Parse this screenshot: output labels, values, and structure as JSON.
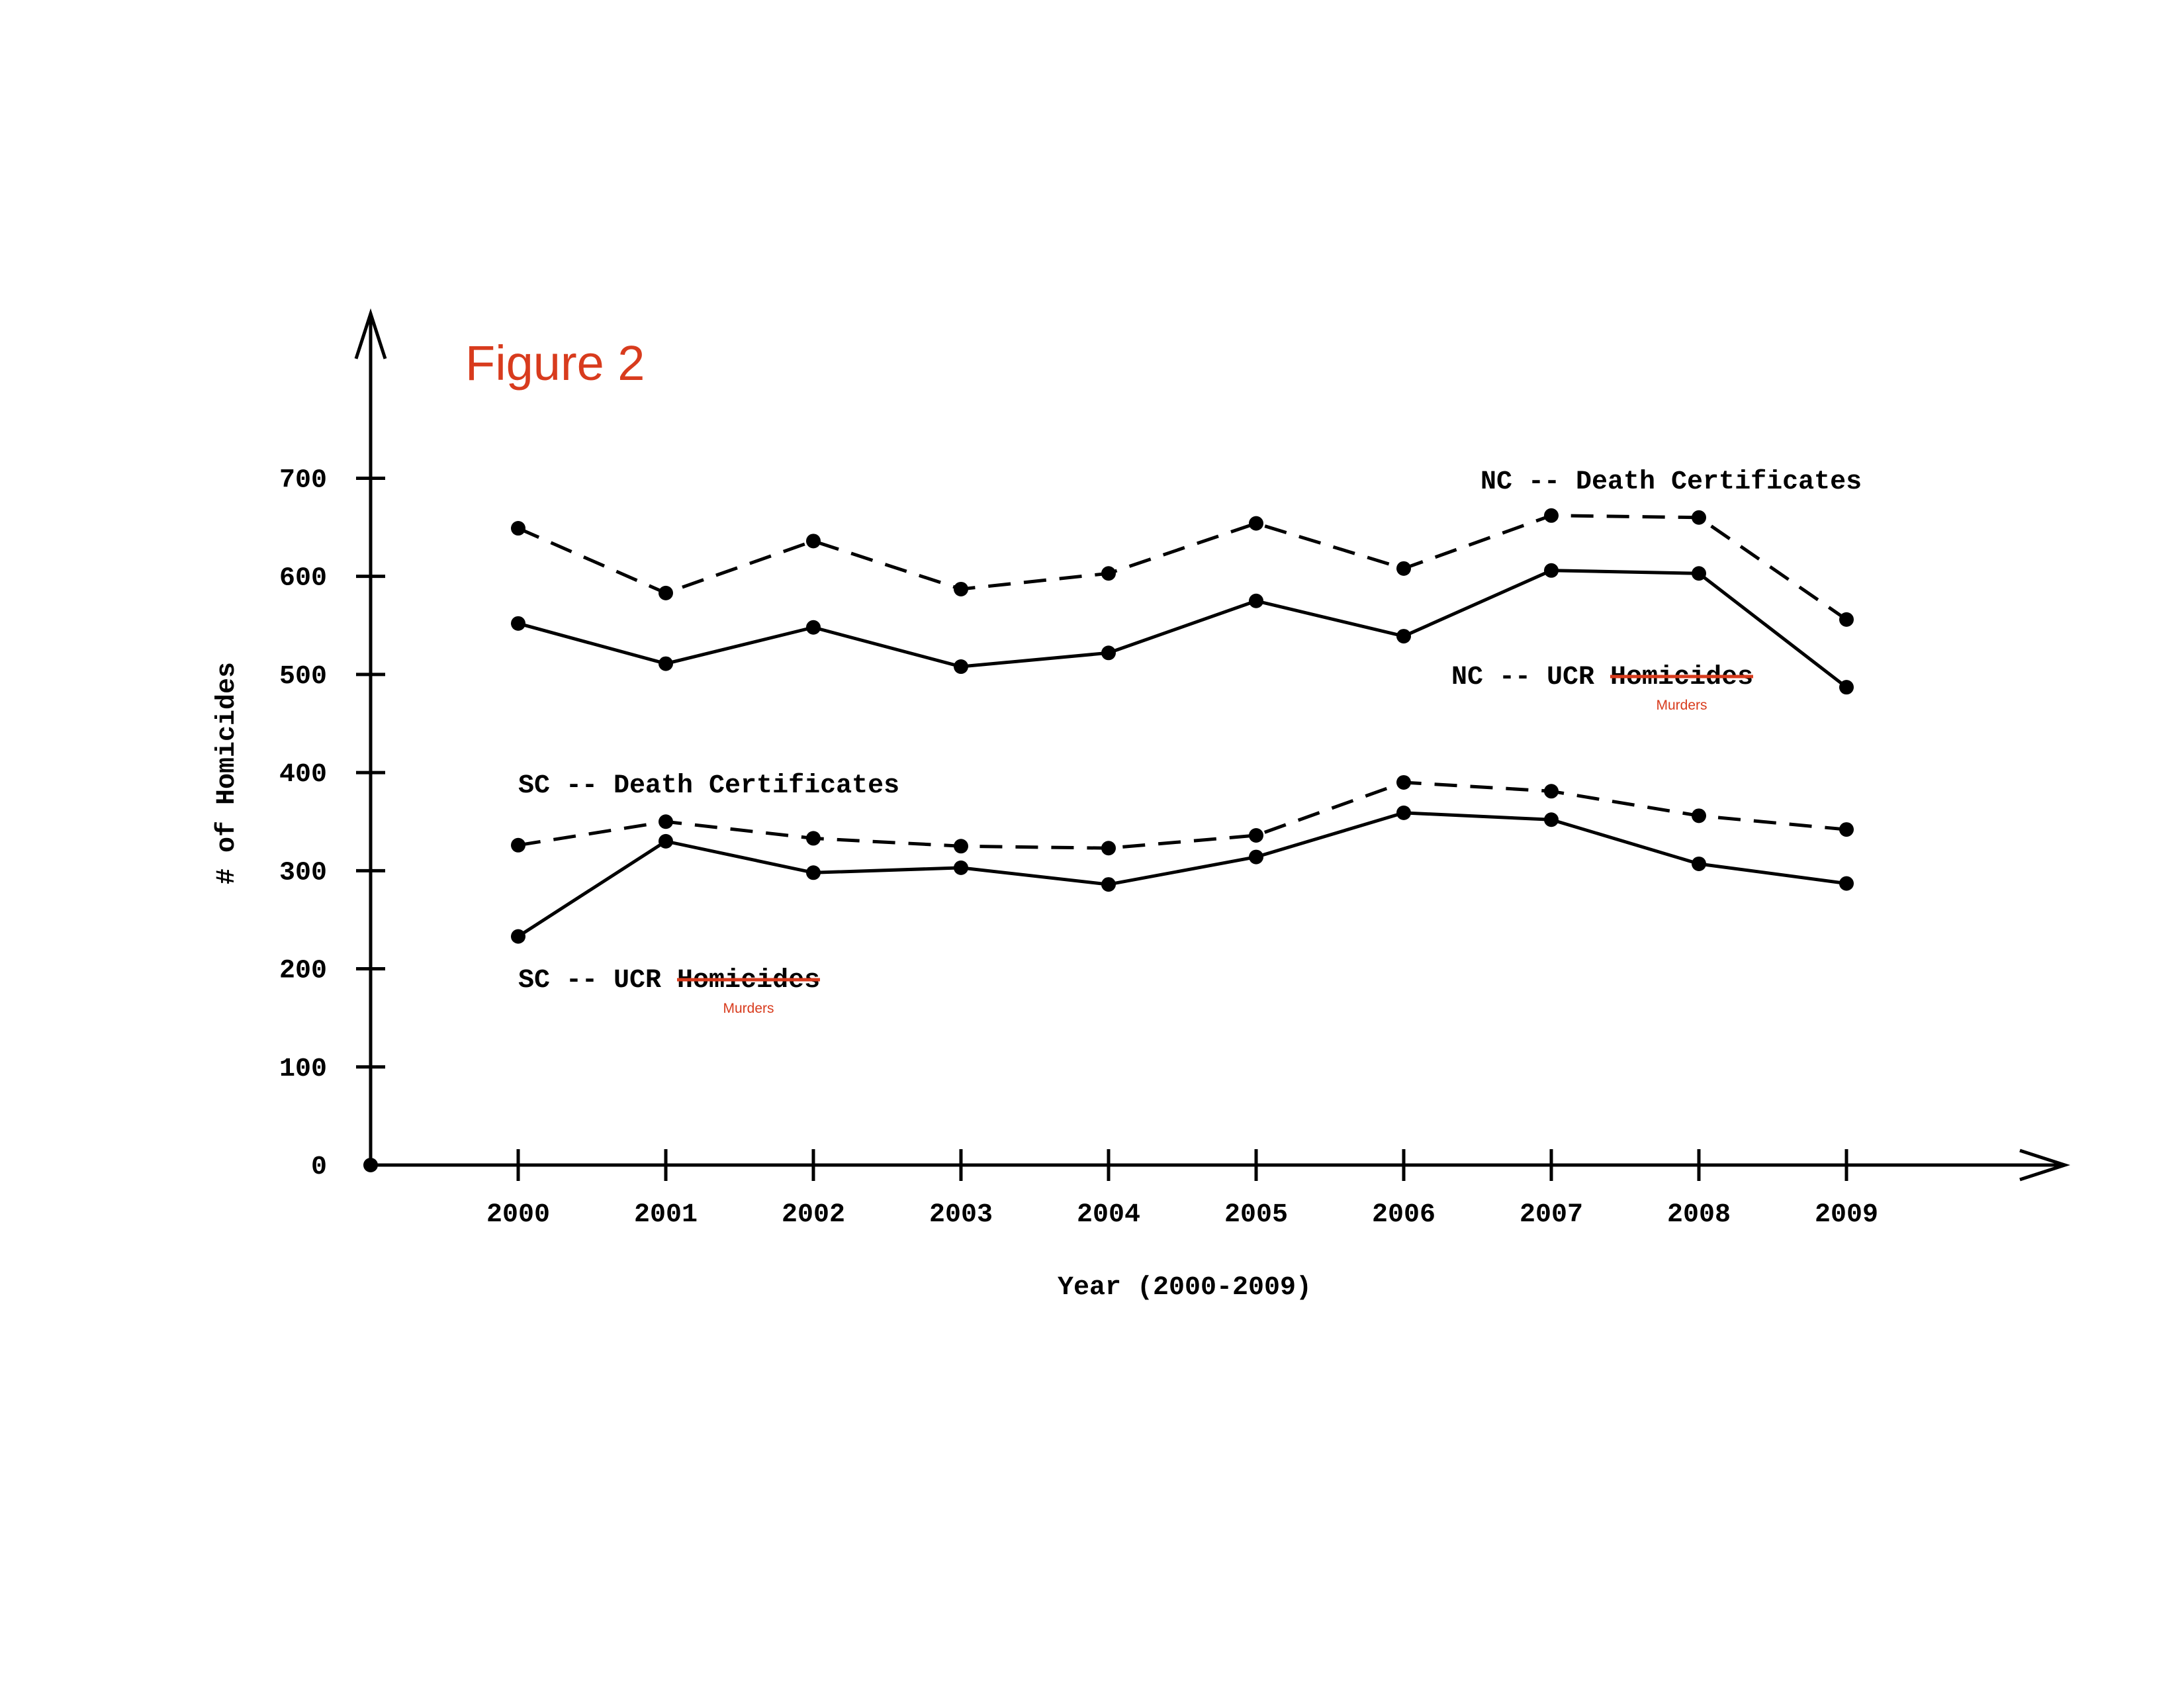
{
  "chart_data": {
    "type": "line",
    "title": "Figure 2",
    "xlabel": "Year (2000-2009)",
    "ylabel": "# of Homicides",
    "x": [
      "2000",
      "2001",
      "2002",
      "2003",
      "2004",
      "2005",
      "2006",
      "2007",
      "2008",
      "2009"
    ],
    "yticks": [
      "0",
      "100",
      "200",
      "300",
      "400",
      "500",
      "600",
      "700"
    ],
    "ylim": [
      0,
      780
    ],
    "grid": false,
    "series": [
      {
        "name": "NC -- Death Certificates",
        "prefix": "NC -- Death Certificates",
        "style": "dashed",
        "values": [
          649,
          583,
          636,
          587,
          603,
          654,
          608,
          662,
          660,
          556
        ]
      },
      {
        "name": "NC -- UCR Homicides",
        "prefix": "NC -- UCR ",
        "struck": "Homicides",
        "correction": "Murders",
        "style": "solid",
        "values": [
          552,
          511,
          548,
          508,
          522,
          575,
          539,
          606,
          603,
          487
        ]
      },
      {
        "name": "SC -- Death Certificates",
        "prefix": "SC -- Death Certificates",
        "style": "dashed",
        "values": [
          326,
          350,
          333,
          325,
          323,
          336,
          390,
          381,
          356,
          342
        ]
      },
      {
        "name": "SC -- UCR Homicides",
        "prefix": "SC -- UCR ",
        "struck": "Homicides",
        "correction": "Murders",
        "style": "solid",
        "values": [
          233,
          330,
          298,
          303,
          286,
          314,
          359,
          352,
          307,
          287
        ]
      }
    ],
    "colors": {
      "line": "#000000",
      "annotation": "#d83b1d"
    }
  }
}
